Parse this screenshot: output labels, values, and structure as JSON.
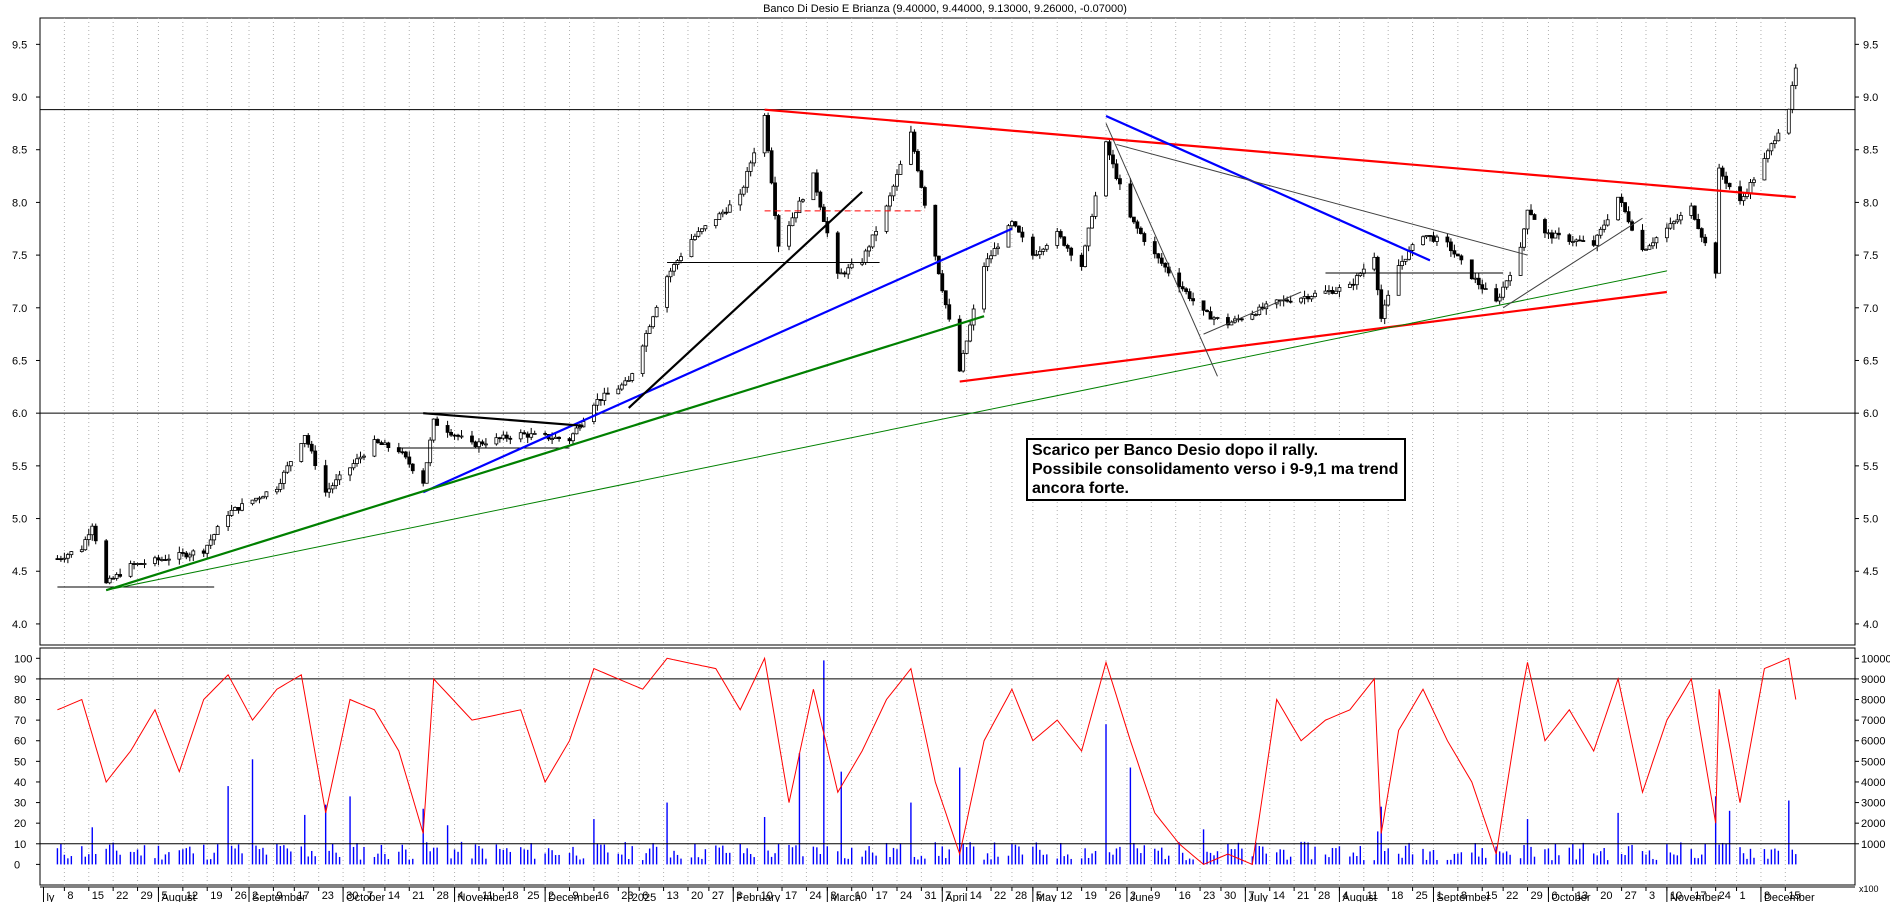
{
  "chart_data": [
    {
      "type": "candlestick",
      "title": "Banco Di Desio E Brianza (9.40000, 9.44000, 9.13000, 9.26000, -0.07000)",
      "ylim": [
        3.8,
        9.75
      ],
      "y_ticks": [
        "4.0",
        "4.5",
        "5.0",
        "5.5",
        "6.0",
        "6.5",
        "7.0",
        "7.5",
        "8.0",
        "8.5",
        "9.0",
        "9.5"
      ],
      "horizontal_levels": [
        8.88,
        6.0
      ],
      "grid": "vertical-dotted",
      "price_anchors": [
        [
          "2024-07-22",
          4.62
        ],
        [
          "2024-07-29",
          4.72
        ],
        [
          "2024-08-01",
          4.95
        ],
        [
          "2024-08-05",
          4.38
        ],
        [
          "2024-08-12",
          4.55
        ],
        [
          "2024-08-26",
          4.65
        ],
        [
          "2024-09-02",
          4.7
        ],
        [
          "2024-09-09",
          5.05
        ],
        [
          "2024-09-23",
          5.3
        ],
        [
          "2024-10-01",
          5.8
        ],
        [
          "2024-10-07",
          5.25
        ],
        [
          "2024-10-21",
          5.72
        ],
        [
          "2024-10-28",
          5.65
        ],
        [
          "2024-11-04",
          5.35
        ],
        [
          "2024-11-07",
          5.92
        ],
        [
          "2024-11-18",
          5.7
        ],
        [
          "2024-12-02",
          5.8
        ],
        [
          "2024-12-16",
          5.75
        ],
        [
          "2024-12-23",
          6.1
        ],
        [
          "2025-01-02",
          6.3
        ],
        [
          "2025-01-13",
          7.3
        ],
        [
          "2025-01-20",
          7.65
        ],
        [
          "2025-02-03",
          8.05
        ],
        [
          "2025-02-10",
          8.82
        ],
        [
          "2025-02-14",
          7.6
        ],
        [
          "2025-02-24",
          8.25
        ],
        [
          "2025-03-03",
          7.3
        ],
        [
          "2025-03-10",
          7.45
        ],
        [
          "2025-03-17",
          7.95
        ],
        [
          "2025-03-24",
          8.65
        ],
        [
          "2025-03-31",
          7.5
        ],
        [
          "2025-04-07",
          6.4
        ],
        [
          "2025-04-14",
          7.4
        ],
        [
          "2025-04-22",
          7.8
        ],
        [
          "2025-04-28",
          7.5
        ],
        [
          "2025-05-05",
          7.7
        ],
        [
          "2025-05-12",
          7.4
        ],
        [
          "2025-05-19",
          8.55
        ],
        [
          "2025-05-26",
          7.85
        ],
        [
          "2025-06-02",
          7.5
        ],
        [
          "2025-06-16",
          6.95
        ],
        [
          "2025-06-23",
          6.85
        ],
        [
          "2025-07-07",
          7.05
        ],
        [
          "2025-07-21",
          7.15
        ],
        [
          "2025-07-28",
          7.2
        ],
        [
          "2025-08-04",
          7.5
        ],
        [
          "2025-08-06",
          6.9
        ],
        [
          "2025-08-11",
          7.4
        ],
        [
          "2025-08-18",
          7.7
        ],
        [
          "2025-08-25",
          7.6
        ],
        [
          "2025-09-01",
          7.3
        ],
        [
          "2025-09-08",
          7.05
        ],
        [
          "2025-09-15",
          7.55
        ],
        [
          "2025-09-17",
          7.95
        ],
        [
          "2025-09-22",
          7.7
        ],
        [
          "2025-10-06",
          7.6
        ],
        [
          "2025-10-13",
          8.05
        ],
        [
          "2025-10-20",
          7.55
        ],
        [
          "2025-10-27",
          7.75
        ],
        [
          "2025-11-03",
          7.95
        ],
        [
          "2025-11-10",
          7.35
        ],
        [
          "2025-11-11",
          8.3
        ],
        [
          "2025-11-17",
          8.0
        ],
        [
          "2025-11-24",
          8.4
        ],
        [
          "2025-12-01",
          8.9
        ],
        [
          "2025-12-03",
          9.26
        ]
      ],
      "trendlines": [
        {
          "color": "#ff0000",
          "from": [
            "2025-02-10",
            8.88
          ],
          "to": [
            "2025-12-03",
            8.05
          ]
        },
        {
          "color": "#ff0000",
          "from": [
            "2025-04-07",
            6.3
          ],
          "to": [
            "2025-10-27",
            7.15
          ]
        },
        {
          "color": "#0000ff",
          "from": [
            "2024-11-04",
            5.25
          ],
          "to": [
            "2025-04-22",
            7.75
          ]
        },
        {
          "color": "#0000ff",
          "from": [
            "2025-05-19",
            8.82
          ],
          "to": [
            "2025-08-20",
            7.45
          ]
        },
        {
          "color": "#000000",
          "from": [
            "2025-01-02",
            6.05
          ],
          "to": [
            "2025-03-10",
            8.1
          ]
        },
        {
          "color": "#008000",
          "from": [
            "2024-08-05",
            4.32
          ],
          "to": [
            "2025-04-14",
            6.92
          ]
        },
        {
          "color": "#008000",
          "from": [
            "2024-08-05",
            4.32
          ],
          "to": [
            "2025-10-27",
            7.35
          ]
        },
        {
          "color": "#404040",
          "from": [
            "2025-05-19",
            8.75
          ],
          "to": [
            "2025-06-20",
            6.35
          ]
        },
        {
          "color": "#404040",
          "from": [
            "2025-05-22",
            8.55
          ],
          "to": [
            "2025-09-17",
            7.5
          ]
        },
        {
          "color": "#404040",
          "from": [
            "2025-06-16",
            6.75
          ],
          "to": [
            "2025-07-14",
            7.15
          ]
        },
        {
          "color": "#404040",
          "from": [
            "2025-09-10",
            7.0
          ],
          "to": [
            "2025-10-20",
            7.85
          ]
        },
        {
          "color": "#000000",
          "from": [
            "2024-11-04",
            6.0
          ],
          "to": [
            "2024-12-20",
            5.88
          ]
        }
      ],
      "support_resistance": [
        {
          "color": "#000000",
          "y": 4.35,
          "from": "2024-07-22",
          "to": "2024-09-05"
        },
        {
          "color": "#000000",
          "y": 5.67,
          "from": "2024-10-28",
          "to": "2024-12-16"
        },
        {
          "color": "#000000",
          "y": 7.43,
          "from": "2025-01-13",
          "to": "2025-03-15"
        },
        {
          "color": "#ff0000",
          "y": 7.92,
          "from": "2025-02-10",
          "to": "2025-03-28"
        },
        {
          "color": "#000000",
          "y": 7.33,
          "from": "2025-07-21",
          "to": "2025-09-10"
        }
      ],
      "annotation": [
        "Scarico per Banco Desio dopo il rally.",
        "Possibile consolidamento verso i 9-9,1 ma trend",
        "ancora forte."
      ]
    },
    {
      "type": "line",
      "series": [
        {
          "color": "#ff0000"
        }
      ],
      "ylim": [
        -10,
        105
      ],
      "y_ticks": [
        "0",
        "10",
        "20",
        "30",
        "40",
        "50",
        "60",
        "70",
        "80",
        "90",
        "100"
      ],
      "levels": [
        90,
        10
      ],
      "anchors": [
        [
          "2024-07-22",
          75
        ],
        [
          "2024-07-29",
          80
        ],
        [
          "2024-08-05",
          40
        ],
        [
          "2024-08-12",
          55
        ],
        [
          "2024-08-19",
          75
        ],
        [
          "2024-08-26",
          45
        ],
        [
          "2024-09-02",
          80
        ],
        [
          "2024-09-09",
          92
        ],
        [
          "2024-09-16",
          70
        ],
        [
          "2024-09-23",
          85
        ],
        [
          "2024-09-30",
          92
        ],
        [
          "2024-10-07",
          25
        ],
        [
          "2024-10-14",
          80
        ],
        [
          "2024-10-21",
          75
        ],
        [
          "2024-10-28",
          55
        ],
        [
          "2024-11-04",
          15
        ],
        [
          "2024-11-07",
          90
        ],
        [
          "2024-11-18",
          70
        ],
        [
          "2024-12-02",
          75
        ],
        [
          "2024-12-09",
          40
        ],
        [
          "2024-12-16",
          60
        ],
        [
          "2024-12-23",
          95
        ],
        [
          "2025-01-06",
          85
        ],
        [
          "2025-01-13",
          100
        ],
        [
          "2025-01-27",
          95
        ],
        [
          "2025-02-03",
          75
        ],
        [
          "2025-02-10",
          100
        ],
        [
          "2025-02-17",
          30
        ],
        [
          "2025-02-24",
          85
        ],
        [
          "2025-03-03",
          35
        ],
        [
          "2025-03-10",
          55
        ],
        [
          "2025-03-17",
          80
        ],
        [
          "2025-03-24",
          95
        ],
        [
          "2025-03-31",
          40
        ],
        [
          "2025-04-07",
          5
        ],
        [
          "2025-04-14",
          60
        ],
        [
          "2025-04-22",
          85
        ],
        [
          "2025-04-28",
          60
        ],
        [
          "2025-05-05",
          70
        ],
        [
          "2025-05-12",
          55
        ],
        [
          "2025-05-19",
          98
        ],
        [
          "2025-05-26",
          60
        ],
        [
          "2025-06-02",
          25
        ],
        [
          "2025-06-09",
          10
        ],
        [
          "2025-06-16",
          0
        ],
        [
          "2025-06-23",
          5
        ],
        [
          "2025-06-30",
          0
        ],
        [
          "2025-07-07",
          80
        ],
        [
          "2025-07-14",
          60
        ],
        [
          "2025-07-21",
          70
        ],
        [
          "2025-07-28",
          75
        ],
        [
          "2025-08-04",
          90
        ],
        [
          "2025-08-06",
          15
        ],
        [
          "2025-08-11",
          65
        ],
        [
          "2025-08-18",
          85
        ],
        [
          "2025-08-25",
          60
        ],
        [
          "2025-09-01",
          40
        ],
        [
          "2025-09-08",
          5
        ],
        [
          "2025-09-15",
          80
        ],
        [
          "2025-09-17",
          98
        ],
        [
          "2025-09-22",
          60
        ],
        [
          "2025-09-29",
          75
        ],
        [
          "2025-10-06",
          55
        ],
        [
          "2025-10-13",
          90
        ],
        [
          "2025-10-20",
          35
        ],
        [
          "2025-10-27",
          70
        ],
        [
          "2025-11-03",
          90
        ],
        [
          "2025-11-10",
          20
        ],
        [
          "2025-11-11",
          85
        ],
        [
          "2025-11-17",
          30
        ],
        [
          "2025-11-24",
          95
        ],
        [
          "2025-12-01",
          100
        ],
        [
          "2025-12-03",
          80
        ]
      ]
    },
    {
      "type": "bar",
      "series": [
        {
          "color": "#0000ff"
        }
      ],
      "ylim": [
        -1000,
        10500
      ],
      "y_ticks": [
        "1000",
        "2000",
        "3000",
        "4000",
        "5000",
        "6000",
        "7000",
        "8000",
        "9000",
        "10000"
      ],
      "peaks": [
        [
          "2024-08-01",
          1800
        ],
        [
          "2024-09-09",
          3800
        ],
        [
          "2024-09-16",
          5100
        ],
        [
          "2024-10-01",
          2400
        ],
        [
          "2024-10-07",
          2900
        ],
        [
          "2024-10-14",
          3300
        ],
        [
          "2024-11-04",
          2700
        ],
        [
          "2024-11-11",
          1900
        ],
        [
          "2024-12-23",
          2200
        ],
        [
          "2025-01-13",
          3000
        ],
        [
          "2025-02-10",
          2300
        ],
        [
          "2025-02-20",
          5400
        ],
        [
          "2025-02-27",
          9900
        ],
        [
          "2025-03-04",
          4500
        ],
        [
          "2025-03-24",
          3000
        ],
        [
          "2025-04-07",
          4700
        ],
        [
          "2025-05-19",
          6800
        ],
        [
          "2025-05-26",
          4700
        ],
        [
          "2025-06-16",
          1700
        ],
        [
          "2025-08-05",
          1600
        ],
        [
          "2025-08-06",
          2800
        ],
        [
          "2025-09-17",
          2200
        ],
        [
          "2025-10-13",
          2500
        ],
        [
          "2025-11-10",
          3300
        ],
        [
          "2025-11-14",
          2600
        ],
        [
          "2025-12-01",
          3100
        ]
      ]
    }
  ],
  "x_axis": {
    "ticks": [
      [
        "2024-07-24",
        "8"
      ],
      [
        "2024-07-31",
        "15"
      ],
      [
        "2024-08-07",
        "22"
      ],
      [
        "2024-08-14",
        "29"
      ],
      [
        "2024-08-20",
        "5"
      ],
      [
        "2024-08-27",
        "12"
      ],
      [
        "2024-09-03",
        "19"
      ],
      [
        "2024-09-10",
        "26"
      ],
      [
        "2024-09-15",
        "2"
      ],
      [
        "2024-09-22",
        "9"
      ],
      [
        "2024-09-28",
        "17"
      ],
      [
        "2024-10-05",
        "23"
      ],
      [
        "2024-10-12",
        "30"
      ],
      [
        "2024-10-18",
        "7"
      ],
      [
        "2024-10-24",
        "14"
      ],
      [
        "2024-10-31",
        "21"
      ],
      [
        "2024-11-07",
        "28"
      ],
      [
        "2024-11-13",
        "4"
      ],
      [
        "2024-11-20",
        "11"
      ],
      [
        "2024-11-27",
        "18"
      ],
      [
        "2024-12-03",
        "25"
      ],
      [
        "2024-12-09",
        "2"
      ],
      [
        "2024-12-16",
        "9"
      ],
      [
        "2024-12-23",
        "16"
      ],
      [
        "2024-12-30",
        "23"
      ],
      [
        "2025-01-05",
        "6"
      ],
      [
        "2025-01-12",
        "13"
      ],
      [
        "2025-01-19",
        "20"
      ],
      [
        "2025-01-25",
        "27"
      ],
      [
        "2025-02-01",
        "3"
      ],
      [
        "2025-02-08",
        "10"
      ],
      [
        "2025-02-15",
        "17"
      ],
      [
        "2025-02-22",
        "24"
      ],
      [
        "2025-02-28",
        "3"
      ],
      [
        "2025-03-07",
        "10"
      ],
      [
        "2025-03-13",
        "17"
      ],
      [
        "2025-03-20",
        "24"
      ],
      [
        "2025-03-27",
        "31"
      ],
      [
        "2025-04-02",
        "7"
      ],
      [
        "2025-04-09",
        "14"
      ],
      [
        "2025-04-16",
        "22"
      ],
      [
        "2025-04-22",
        "28"
      ],
      [
        "2025-04-28",
        "5"
      ],
      [
        "2025-05-05",
        "12"
      ],
      [
        "2025-05-12",
        "19"
      ],
      [
        "2025-05-19",
        "26"
      ],
      [
        "2025-05-25",
        "2"
      ],
      [
        "2025-06-01",
        "9"
      ],
      [
        "2025-06-08",
        "16"
      ],
      [
        "2025-06-15",
        "23"
      ],
      [
        "2025-06-21",
        "30"
      ],
      [
        "2025-06-28",
        "7"
      ],
      [
        "2025-07-05",
        "14"
      ],
      [
        "2025-07-12",
        "21"
      ],
      [
        "2025-07-18",
        "28"
      ],
      [
        "2025-07-25",
        "4"
      ],
      [
        "2025-08-01",
        "11"
      ],
      [
        "2025-08-08",
        "18"
      ],
      [
        "2025-08-15",
        "25"
      ],
      [
        "2025-08-21",
        "1"
      ],
      [
        "2025-08-28",
        "8"
      ],
      [
        "2025-09-04",
        "15"
      ],
      [
        "2025-09-10",
        "22"
      ],
      [
        "2025-09-17",
        "29"
      ],
      [
        "2025-09-23",
        "6"
      ],
      [
        "2025-09-30",
        "13"
      ],
      [
        "2025-10-07",
        "20"
      ],
      [
        "2025-10-14",
        "27"
      ],
      [
        "2025-10-21",
        "3"
      ],
      [
        "2025-10-27",
        "10"
      ],
      [
        "2025-11-03",
        "17"
      ],
      [
        "2025-11-10",
        "24"
      ],
      [
        "2025-11-16",
        "1"
      ],
      [
        "2025-11-23",
        "8"
      ],
      [
        "2025-11-30",
        "15"
      ]
    ],
    "months": [
      [
        "2024-07-18",
        "ly"
      ],
      [
        "2024-08-20",
        "August"
      ],
      [
        "2024-09-15",
        "September"
      ],
      [
        "2024-10-12",
        "October"
      ],
      [
        "2024-11-13",
        "November"
      ],
      [
        "2024-12-09",
        "December"
      ],
      [
        "2025-01-02",
        "2025"
      ],
      [
        "2025-02-01",
        "February"
      ],
      [
        "2025-02-28",
        "March"
      ],
      [
        "2025-04-02",
        "April"
      ],
      [
        "2025-04-28",
        "May"
      ],
      [
        "2025-05-25",
        "June"
      ],
      [
        "2025-06-28",
        "July"
      ],
      [
        "2025-07-25",
        "August"
      ],
      [
        "2025-08-21",
        "September"
      ],
      [
        "2025-09-23",
        "October"
      ],
      [
        "2025-10-27",
        "November"
      ],
      [
        "2025-11-23",
        "December"
      ]
    ],
    "scale_label": "x100"
  }
}
